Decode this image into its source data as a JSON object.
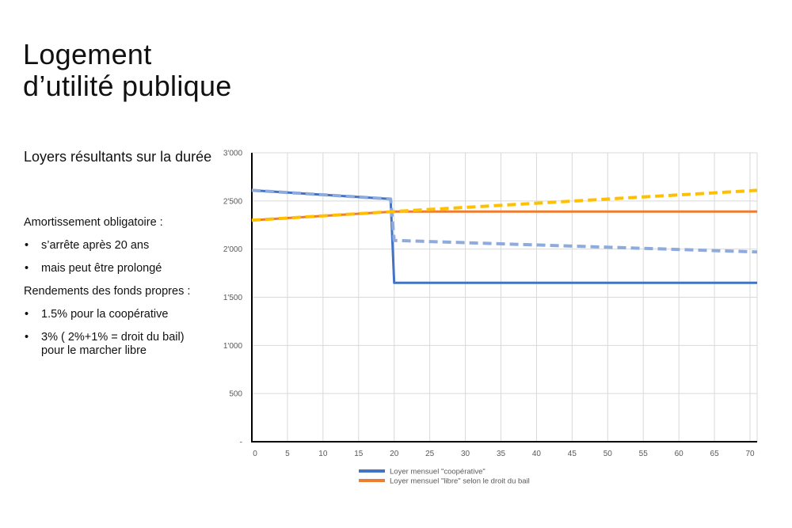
{
  "slide": {
    "title_line1": "Logement",
    "title_line2": "d’utilité publique",
    "subtitle": "Loyers résultants sur la durée",
    "paragraphs": {
      "amortissement": "Amortissement obligatoire :",
      "bullet1": "s’arrête après 20 ans",
      "bullet2": "mais peut être prolongé",
      "rendements": "Rendements des fonds propres :",
      "bullet3": "1.5% pour la coopérative",
      "bullet4": "3% ( 2%+1% = droit du bail) pour le marcher libre"
    },
    "bullet_symbol": "•"
  },
  "chart_data": {
    "type": "line",
    "title": "",
    "xlabel": "",
    "ylabel": "",
    "xlim": [
      0,
      71
    ],
    "ylim": [
      0,
      3000
    ],
    "x_ticks": [
      0,
      5,
      10,
      15,
      20,
      25,
      30,
      35,
      40,
      45,
      50,
      55,
      60,
      65,
      70
    ],
    "x_tick_labels": [
      "0",
      "5",
      "10",
      "15",
      "20",
      "25",
      "30",
      "35",
      "40",
      "45",
      "50",
      "55",
      "60",
      "65",
      "70"
    ],
    "y_ticks": [
      0,
      500,
      1000,
      1500,
      2000,
      2500,
      3000
    ],
    "y_tick_labels": [
      "-",
      "500",
      "1'000",
      "1'500",
      "2'000",
      "2'500",
      "3'000"
    ],
    "grid": true,
    "legend_position": "bottom-left",
    "series": [
      {
        "name": "Loyer mensuel \"coopérative\"",
        "color": "#4472C4",
        "dash": "solid",
        "in_legend": true,
        "points": [
          [
            0,
            2610
          ],
          [
            19.5,
            2520
          ],
          [
            20,
            1650
          ],
          [
            71,
            1650
          ]
        ]
      },
      {
        "name": "Loyer mensuel \"libre\" selon le droit du bail",
        "color": "#ED7D31",
        "dash": "solid",
        "in_legend": true,
        "points": [
          [
            0,
            2300
          ],
          [
            20,
            2390
          ],
          [
            71,
            2390
          ]
        ]
      },
      {
        "name": "",
        "color": "#8FAADC",
        "dash": "dashed",
        "in_legend": false,
        "points": [
          [
            0,
            2610
          ],
          [
            19.5,
            2520
          ],
          [
            20,
            2090
          ],
          [
            71,
            1970
          ]
        ]
      },
      {
        "name": "",
        "color": "#FFC000",
        "dash": "dashed",
        "in_legend": false,
        "points": [
          [
            0,
            2300
          ],
          [
            20,
            2390
          ],
          [
            71,
            2610
          ]
        ]
      }
    ]
  }
}
